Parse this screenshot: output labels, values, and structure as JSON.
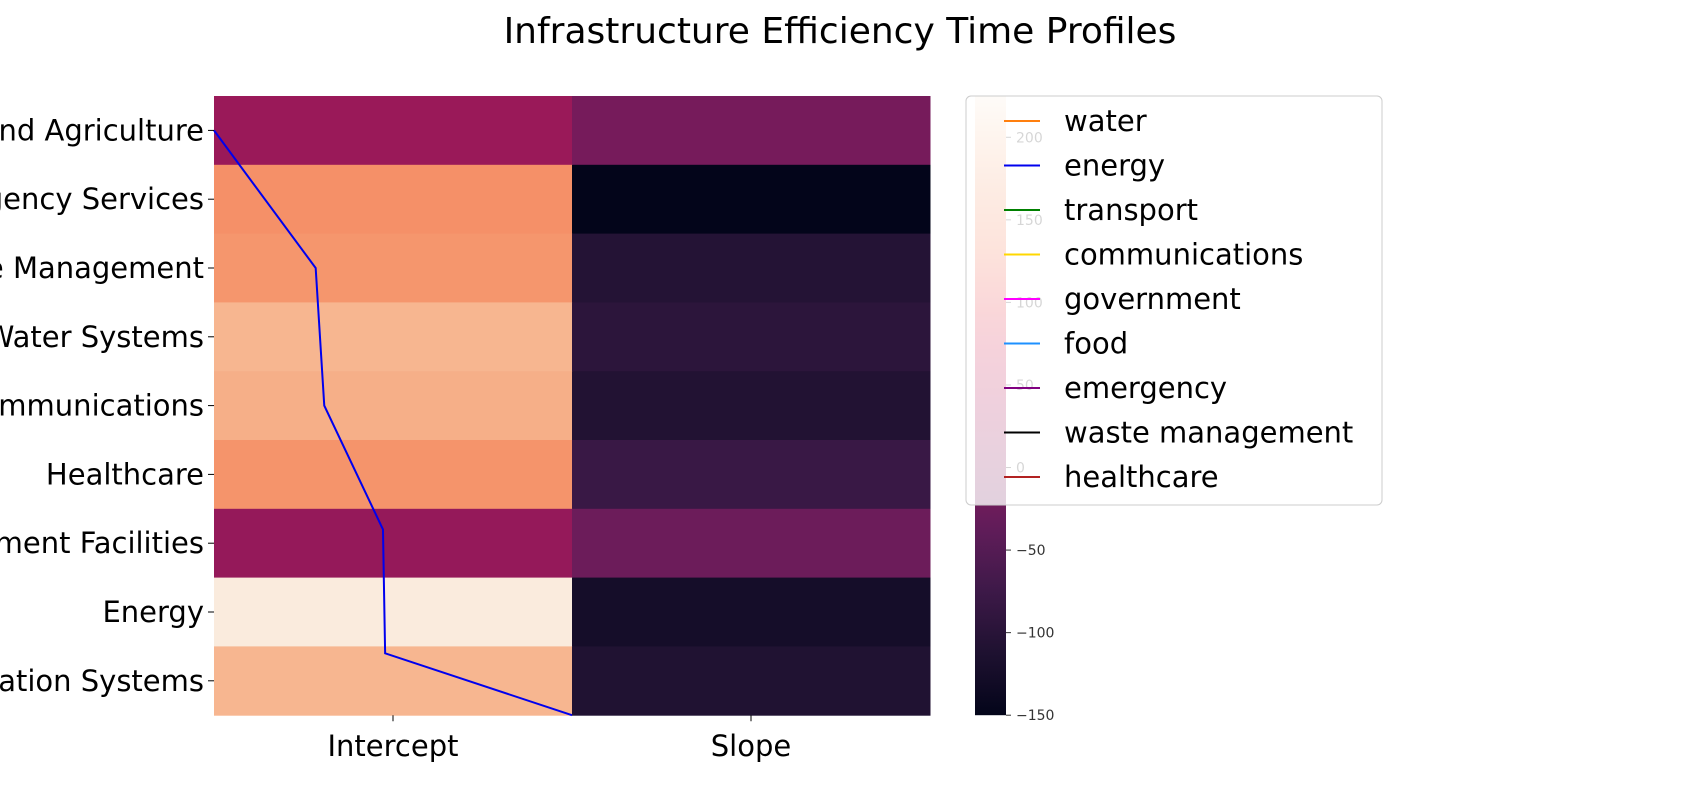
{
  "chart_data": {
    "type": "heatmap",
    "title": "Infrastructure Efficiency Time Profiles",
    "columns": [
      "Intercept",
      "Slope"
    ],
    "rows": [
      "Food and Agriculture",
      "Emergency Services",
      "Waste Management",
      "Water Systems",
      "Communications",
      "Healthcare",
      "Government Facilities",
      "Energy",
      "Transportation Systems"
    ],
    "values": [
      [
        20,
        -15
      ],
      [
        155,
        -150
      ],
      [
        160,
        -105
      ],
      [
        185,
        -95
      ],
      [
        180,
        -108
      ],
      [
        158,
        -80
      ],
      [
        15,
        -25
      ],
      [
        225,
        -125
      ],
      [
        185,
        -110
      ]
    ],
    "colorbar": {
      "min": -150,
      "max": 225,
      "ticks": [
        -150,
        -100,
        -50,
        0,
        50,
        100,
        150,
        200
      ],
      "tick_labels": [
        "−150",
        "−100",
        "−50",
        "0",
        "50",
        "100",
        "150",
        "200"
      ],
      "colormap": "rocket"
    },
    "overlay_line": {
      "name": "energy",
      "color": "#0000ee",
      "x_fraction": [
        0.0,
        0.142,
        0.154,
        0.236,
        0.239,
        0.5
      ],
      "y_row": [
        0.5,
        2.5,
        4.5,
        6.3,
        8.1,
        9.0
      ]
    },
    "legend": {
      "placement": "upper-right",
      "entries": [
        {
          "label": "water",
          "color": "#ff7f0e"
        },
        {
          "label": "energy",
          "color": "#0000ee"
        },
        {
          "label": "transport",
          "color": "#008000"
        },
        {
          "label": "communications",
          "color": "#ffd700"
        },
        {
          "label": "government",
          "color": "#ff00ff"
        },
        {
          "label": "food",
          "color": "#1e90ff"
        },
        {
          "label": "emergency",
          "color": "#800080"
        },
        {
          "label": "waste management",
          "color": "#000000"
        },
        {
          "label": "healthcare",
          "color": "#b22222"
        }
      ]
    }
  }
}
